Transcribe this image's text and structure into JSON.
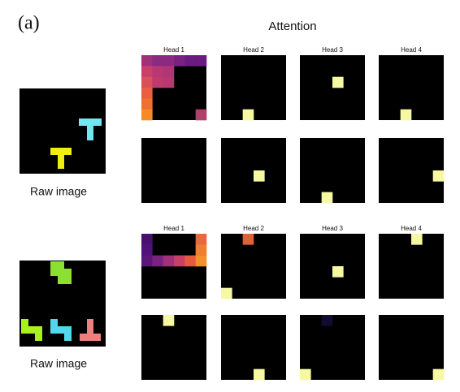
{
  "panel_label": "(a)",
  "title": "Attention",
  "examples": [
    {
      "heads": [
        "Head 1",
        "Head 2",
        "Head 3",
        "Head 4"
      ],
      "caption": "Raw image"
    },
    {
      "heads": [
        "Head 1",
        "Head 2",
        "Head 3",
        "Head 4"
      ],
      "caption": "Raw image"
    }
  ]
}
